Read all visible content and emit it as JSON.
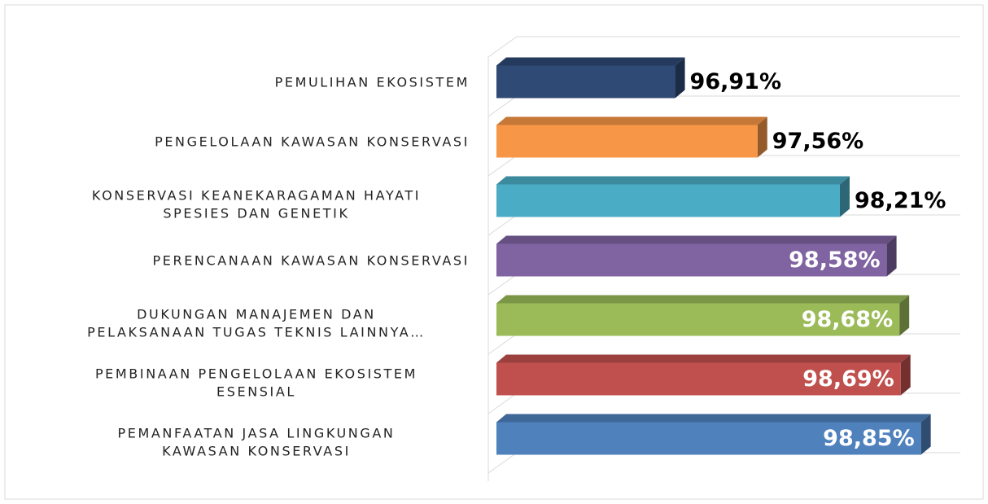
{
  "chart_data": {
    "type": "bar3d_horizontal",
    "categories": [
      "PEMULIHAN EKOSISTEM",
      "PENGELOLAAN KAWASAN KONSERVASI",
      "KONSERVASI KEANEKARAGAMAN HAYATI\nSPESIES DAN GENETIK",
      "PERENCANAAN KAWASAN KONSERVASI",
      "DUKUNGAN MANAJEMEN DAN\nPELAKSANAAN TUGAS TEKNIS LAINNYA…",
      "PEMBINAAN PENGELOLAAN EKOSISTEM\nESENSIAL",
      "PEMANFAATAN JASA LINGKUNGAN\nKAWASAN KONSERVASI"
    ],
    "values": [
      96.91,
      97.56,
      98.21,
      98.58,
      98.68,
      98.69,
      98.85
    ],
    "value_labels": [
      "96,91%",
      "97,56%",
      "98,21%",
      "98,58%",
      "98,68%",
      "98,69%",
      "98,85%"
    ],
    "colors": [
      "#2e4a75",
      "#f79646",
      "#4bacc6",
      "#8064a2",
      "#9bbb59",
      "#c0504d",
      "#4f81bd"
    ],
    "value_label_colors": [
      "#000000",
      "#000000",
      "#000000",
      "#ffffff",
      "#ffffff",
      "#ffffff",
      "#ffffff"
    ],
    "xlim": [
      95.5,
      99
    ],
    "grid": true
  }
}
